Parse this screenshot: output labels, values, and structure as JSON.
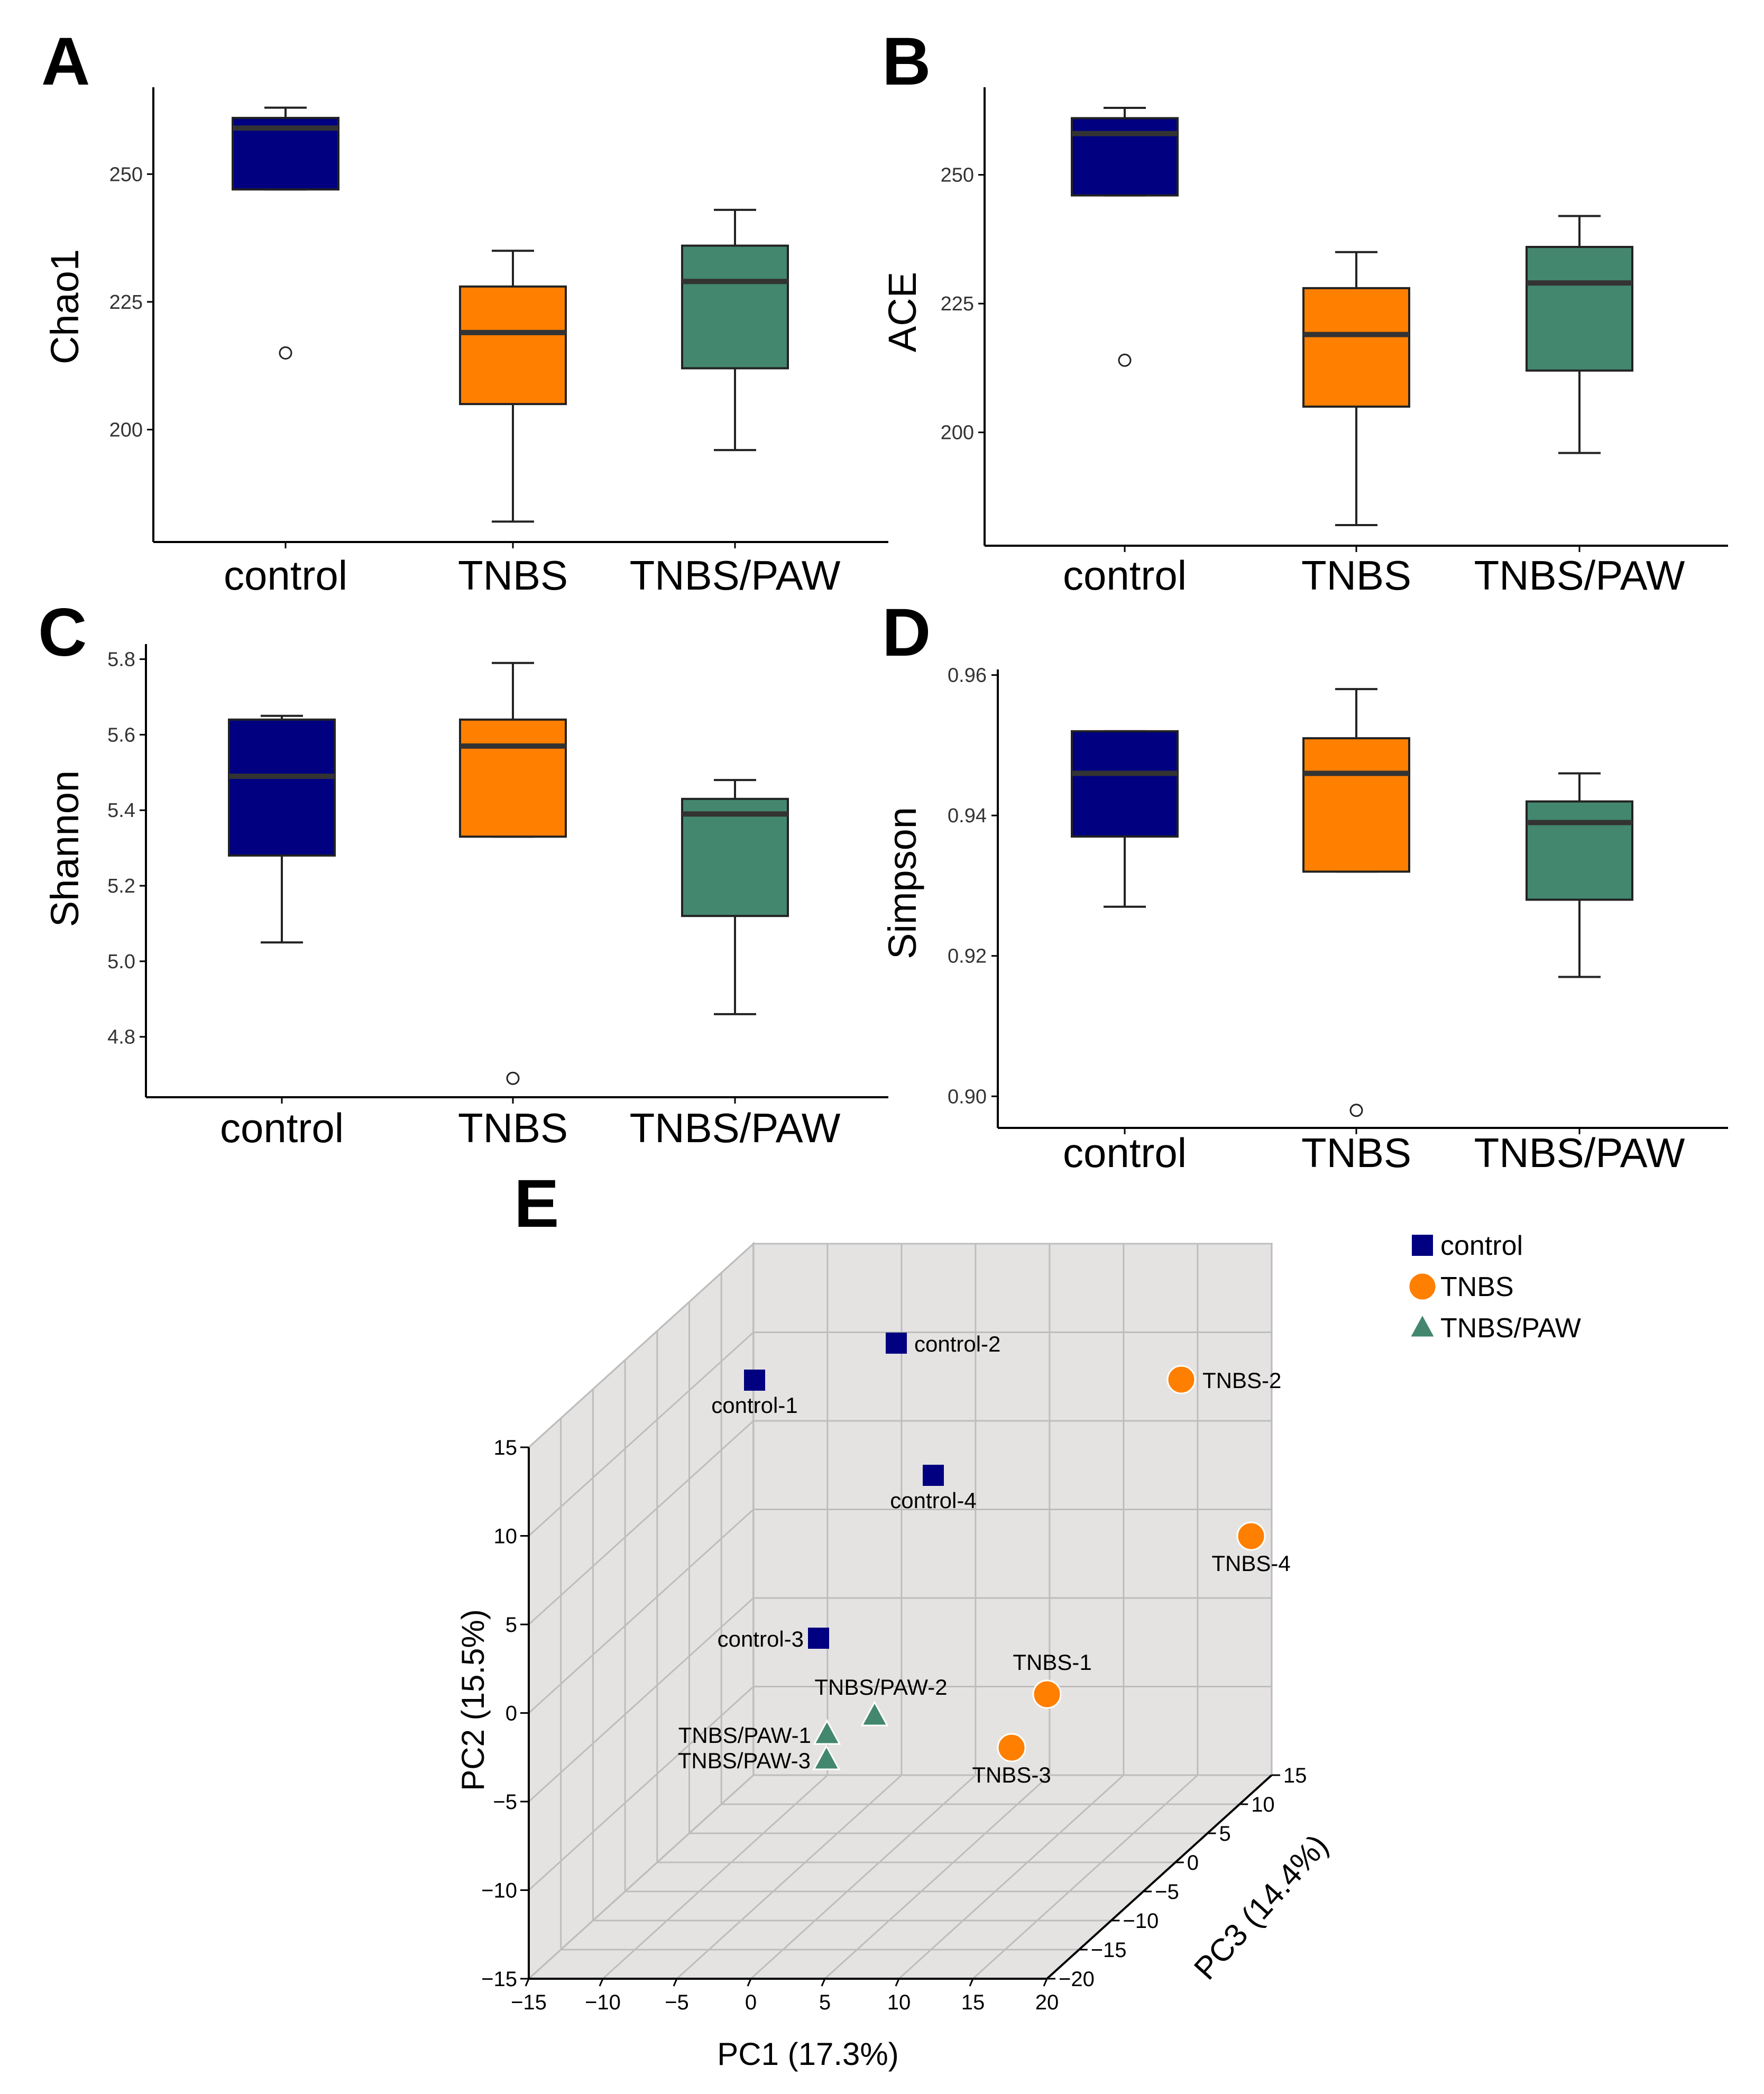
{
  "chart_data": [
    {
      "id": "A",
      "panel_label": "A",
      "type": "boxplot",
      "ylabel": "Chao1",
      "categories": [
        "control",
        "TNBS",
        "TNBS/PAW"
      ],
      "yticks": [
        200,
        225,
        250
      ],
      "ylim": [
        178,
        267
      ],
      "boxes": [
        {
          "whisker_low": 247,
          "q1": 247,
          "median": 259,
          "q3": 261,
          "whisker_high": 263,
          "outliers": [
            215
          ]
        },
        {
          "whisker_low": 182,
          "q1": 205,
          "median": 219,
          "q3": 228,
          "whisker_high": 235,
          "outliers": []
        },
        {
          "whisker_low": 196,
          "q1": 212,
          "median": 229,
          "q3": 236,
          "whisker_high": 243,
          "outliers": []
        }
      ]
    },
    {
      "id": "B",
      "panel_label": "B",
      "type": "boxplot",
      "ylabel": "ACE",
      "categories": [
        "control",
        "TNBS",
        "TNBS/PAW"
      ],
      "yticks": [
        200,
        225,
        250
      ],
      "ylim": [
        178,
        267
      ],
      "boxes": [
        {
          "whisker_low": 246,
          "q1": 246,
          "median": 258,
          "q3": 261,
          "whisker_high": 263,
          "outliers": [
            214
          ]
        },
        {
          "whisker_low": 182,
          "q1": 205,
          "median": 219,
          "q3": 228,
          "whisker_high": 235,
          "outliers": []
        },
        {
          "whisker_low": 196,
          "q1": 212,
          "median": 229,
          "q3": 236,
          "whisker_high": 242,
          "outliers": []
        }
      ]
    },
    {
      "id": "C",
      "panel_label": "C",
      "type": "boxplot",
      "ylabel": "Shannon",
      "categories": [
        "control",
        "TNBS",
        "TNBS/PAW"
      ],
      "yticks": [
        "4.8",
        "5.0",
        "5.2",
        "5.4",
        "5.6",
        "5.8"
      ],
      "ylim": [
        4.64,
        5.84
      ],
      "boxes": [
        {
          "whisker_low": 5.05,
          "q1": 5.28,
          "median": 5.49,
          "q3": 5.64,
          "whisker_high": 5.65,
          "outliers": []
        },
        {
          "whisker_low": 5.33,
          "q1": 5.33,
          "median": 5.57,
          "q3": 5.64,
          "whisker_high": 5.79,
          "outliers": [
            4.69
          ]
        },
        {
          "whisker_low": 4.86,
          "q1": 5.12,
          "median": 5.39,
          "q3": 5.43,
          "whisker_high": 5.48,
          "outliers": []
        }
      ]
    },
    {
      "id": "D",
      "panel_label": "D",
      "type": "boxplot",
      "ylabel": "Simpson",
      "categories": [
        "control",
        "TNBS",
        "TNBS/PAW"
      ],
      "yticks": [
        "0.90",
        "0.92",
        "0.94",
        "0.96"
      ],
      "ylim": [
        0.8955,
        0.9608
      ],
      "boxes": [
        {
          "whisker_low": 0.927,
          "q1": 0.937,
          "median": 0.946,
          "q3": 0.952,
          "whisker_high": 0.952,
          "outliers": []
        },
        {
          "whisker_low": 0.932,
          "q1": 0.932,
          "median": 0.946,
          "q3": 0.951,
          "whisker_high": 0.958,
          "outliers": [
            0.898
          ]
        },
        {
          "whisker_low": 0.917,
          "q1": 0.928,
          "median": 0.939,
          "q3": 0.942,
          "whisker_high": 0.946,
          "outliers": []
        }
      ]
    },
    {
      "id": "E",
      "panel_label": "E",
      "type": "scatter3d",
      "xlabel": "PC1 (17.3%)",
      "ylabel": "PC2 (15.5%)",
      "zlabel": "PC3 (14.4%)",
      "xticks": [
        "−15",
        "−10",
        "−5",
        "0",
        "5",
        "10",
        "15",
        "20"
      ],
      "yticks": [
        "−15",
        "−10",
        "−5",
        "0",
        "5",
        "10",
        "15"
      ],
      "zticks": [
        "−20",
        "−15",
        "−10",
        "−5",
        "0",
        "5",
        "10",
        "15"
      ],
      "legend": [
        {
          "label": "control",
          "marker": "square"
        },
        {
          "label": "TNBS",
          "marker": "circle"
        },
        {
          "label": "TNBS/PAW",
          "marker": "triangle"
        }
      ],
      "points": [
        {
          "label": "control-1",
          "group": 0,
          "pc1": -14,
          "pc2": 14,
          "pc3": 8
        },
        {
          "label": "control-2",
          "group": 0,
          "pc1": -10,
          "pc2": 12,
          "pc3": 12
        },
        {
          "label": "control-3",
          "group": 0,
          "pc1": -6,
          "pc2": 0,
          "pc3": 2
        },
        {
          "label": "control-4",
          "group": 0,
          "pc1": 0,
          "pc2": 9,
          "pc3": 6
        },
        {
          "label": "TNBS-1",
          "group": 1,
          "pc1": 16,
          "pc2": 2,
          "pc3": 0
        },
        {
          "label": "TNBS-2",
          "group": 1,
          "pc1": 18,
          "pc2": 12,
          "pc3": 12
        },
        {
          "label": "TNBS-3",
          "group": 1,
          "pc1": 16,
          "pc2": -3,
          "pc3": -4
        },
        {
          "label": "TNBS-4",
          "group": 1,
          "pc1": 20,
          "pc2": 7,
          "pc3": 8
        },
        {
          "label": "TNBS/PAW-1",
          "group": 2,
          "pc1": 0,
          "pc2": -5,
          "pc3": -10
        },
        {
          "label": "TNBS/PAW-2",
          "group": 2,
          "pc1": 4,
          "pc2": -4,
          "pc3": -8
        },
        {
          "label": "TNBS/PAW-3",
          "group": 2,
          "pc1": 0,
          "pc2": -7,
          "pc3": -10
        }
      ]
    }
  ],
  "colors": {
    "control": "#000080",
    "TNBS": "#FF7F00",
    "TNBS/PAW": "#43876E",
    "median": "#333333",
    "pane": "#E5E3E2",
    "grid": "#BDBDBD"
  }
}
